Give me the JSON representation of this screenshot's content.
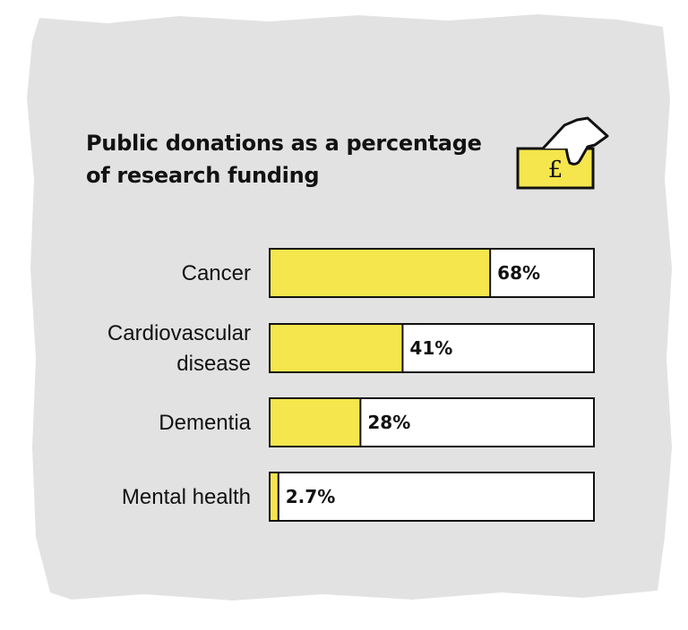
{
  "colors": {
    "background": "#e2e2e2",
    "bar_fill": "#f5e64d",
    "bar_track": "#ffffff",
    "outline": "#121212"
  },
  "header": {
    "title_line1": "Public donations as a percentage",
    "title_line2": "of research funding",
    "icon": "hand-dropping-pound-coin-into-box-icon",
    "icon_glyph": "£"
  },
  "chart_data": {
    "type": "bar",
    "orientation": "horizontal",
    "title": "Public donations as a percentage of research funding",
    "categories": [
      [
        "Cancer"
      ],
      [
        "Cardiovascular",
        "disease"
      ],
      [
        "Dementia"
      ],
      [
        "Mental health"
      ]
    ],
    "values": [
      68,
      41,
      28,
      2.7
    ],
    "value_labels": [
      "68%",
      "41%",
      "28%",
      "2.7%"
    ],
    "xlim": [
      0,
      100
    ],
    "unit": "%",
    "grid": false,
    "legend": "none"
  }
}
